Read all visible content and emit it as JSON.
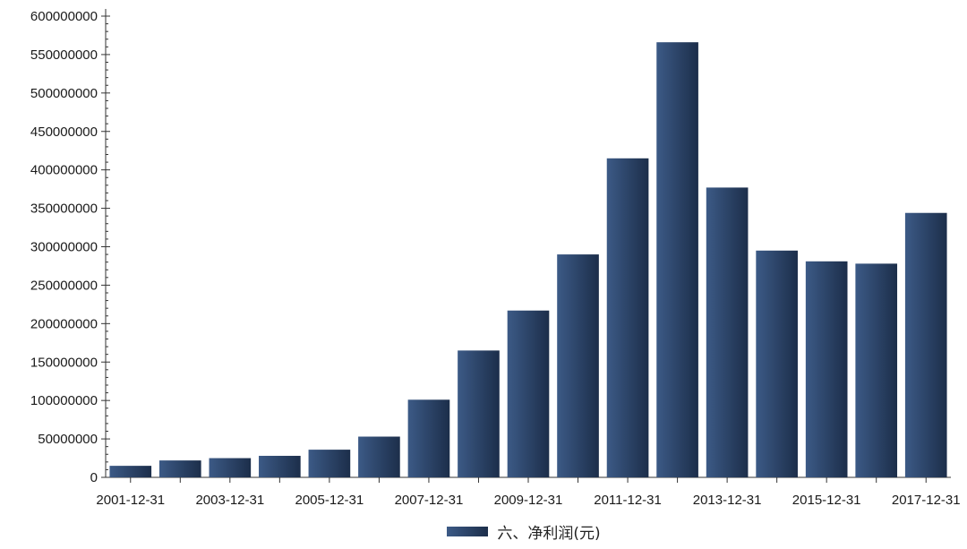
{
  "chart_data": {
    "type": "bar",
    "categories": [
      "2001-12-31",
      "2002-12-31",
      "2003-12-31",
      "2004-12-31",
      "2005-12-31",
      "2006-12-31",
      "2007-12-31",
      "2008-12-31",
      "2009-12-31",
      "2010-12-31",
      "2011-12-31",
      "2012-12-31",
      "2013-12-31",
      "2014-12-31",
      "2015-12-31",
      "2016-12-31",
      "2017-12-31"
    ],
    "x_tick_labels": [
      "2001-12-31",
      "2003-12-31",
      "2005-12-31",
      "2007-12-31",
      "2009-12-31",
      "2011-12-31",
      "2013-12-31",
      "2015-12-31",
      "2017-12-31"
    ],
    "series": [
      {
        "name": "六、净利润(元)",
        "values": [
          15000000,
          22000000,
          25000000,
          28000000,
          36000000,
          53000000,
          101000000,
          165000000,
          217000000,
          290000000,
          415000000,
          566000000,
          377000000,
          295000000,
          281000000,
          278000000,
          344000000
        ]
      }
    ],
    "y_ticks": [
      0,
      50000000,
      100000000,
      150000000,
      200000000,
      250000000,
      300000000,
      350000000,
      400000000,
      450000000,
      500000000,
      550000000,
      600000000
    ],
    "ylim": [
      0,
      600000000
    ],
    "title": "",
    "xlabel": "",
    "ylabel": "",
    "legend_position": "bottom",
    "colors": {
      "bar_dark": "#1c2e4a",
      "bar_light": "#3c5a86",
      "axis": "#333333"
    }
  }
}
